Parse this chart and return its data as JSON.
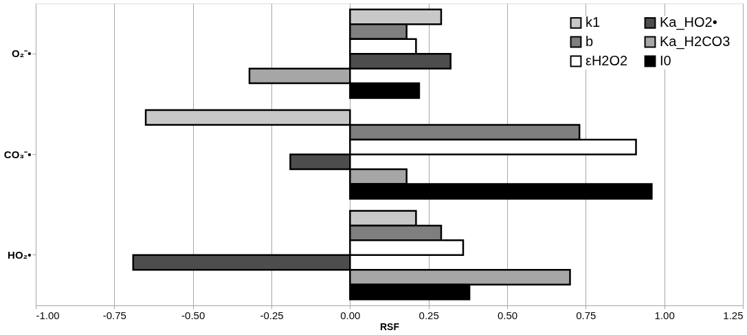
{
  "chart_data": {
    "type": "bar",
    "orientation": "horizontal",
    "xlabel": "RSF",
    "categories": [
      "O₂⁻•",
      "CO₃⁻•",
      "HO₂•"
    ],
    "series": [
      {
        "name": "k1",
        "color": "#c8c8c8",
        "values": [
          0.29,
          -0.65,
          0.21
        ]
      },
      {
        "name": "b",
        "color": "#7f7f7f",
        "values": [
          0.18,
          0.73,
          0.29
        ]
      },
      {
        "name": "εH2O2",
        "color": "#ffffff",
        "values": [
          0.21,
          0.91,
          0.36
        ]
      },
      {
        "name": "Ka_HO2•",
        "color": "#4d4d4d",
        "values": [
          0.32,
          -0.19,
          -0.69
        ]
      },
      {
        "name": "Ka_H2CO3",
        "color": "#a6a6a6",
        "values": [
          -0.32,
          0.18,
          0.7
        ]
      },
      {
        "name": "I0",
        "color": "#000000",
        "values": [
          0.22,
          0.96,
          0.38
        ]
      }
    ],
    "xlim": [
      -1.0,
      1.25
    ],
    "xticks": [
      {
        "value": -1.0,
        "label": "-1.00"
      },
      {
        "value": -0.75,
        "label": "-0.75"
      },
      {
        "value": -0.5,
        "label": "-0.50"
      },
      {
        "value": -0.25,
        "label": "-0.25"
      },
      {
        "value": 0.0,
        "label": "0.00"
      },
      {
        "value": 0.25,
        "label": "0.25"
      },
      {
        "value": 0.5,
        "label": "0.50"
      },
      {
        "value": 0.75,
        "label": "0.75"
      },
      {
        "value": 1.0,
        "label": "1.00"
      },
      {
        "value": 1.25,
        "label": "1.25"
      }
    ],
    "grid": "x",
    "legend": "top right"
  }
}
